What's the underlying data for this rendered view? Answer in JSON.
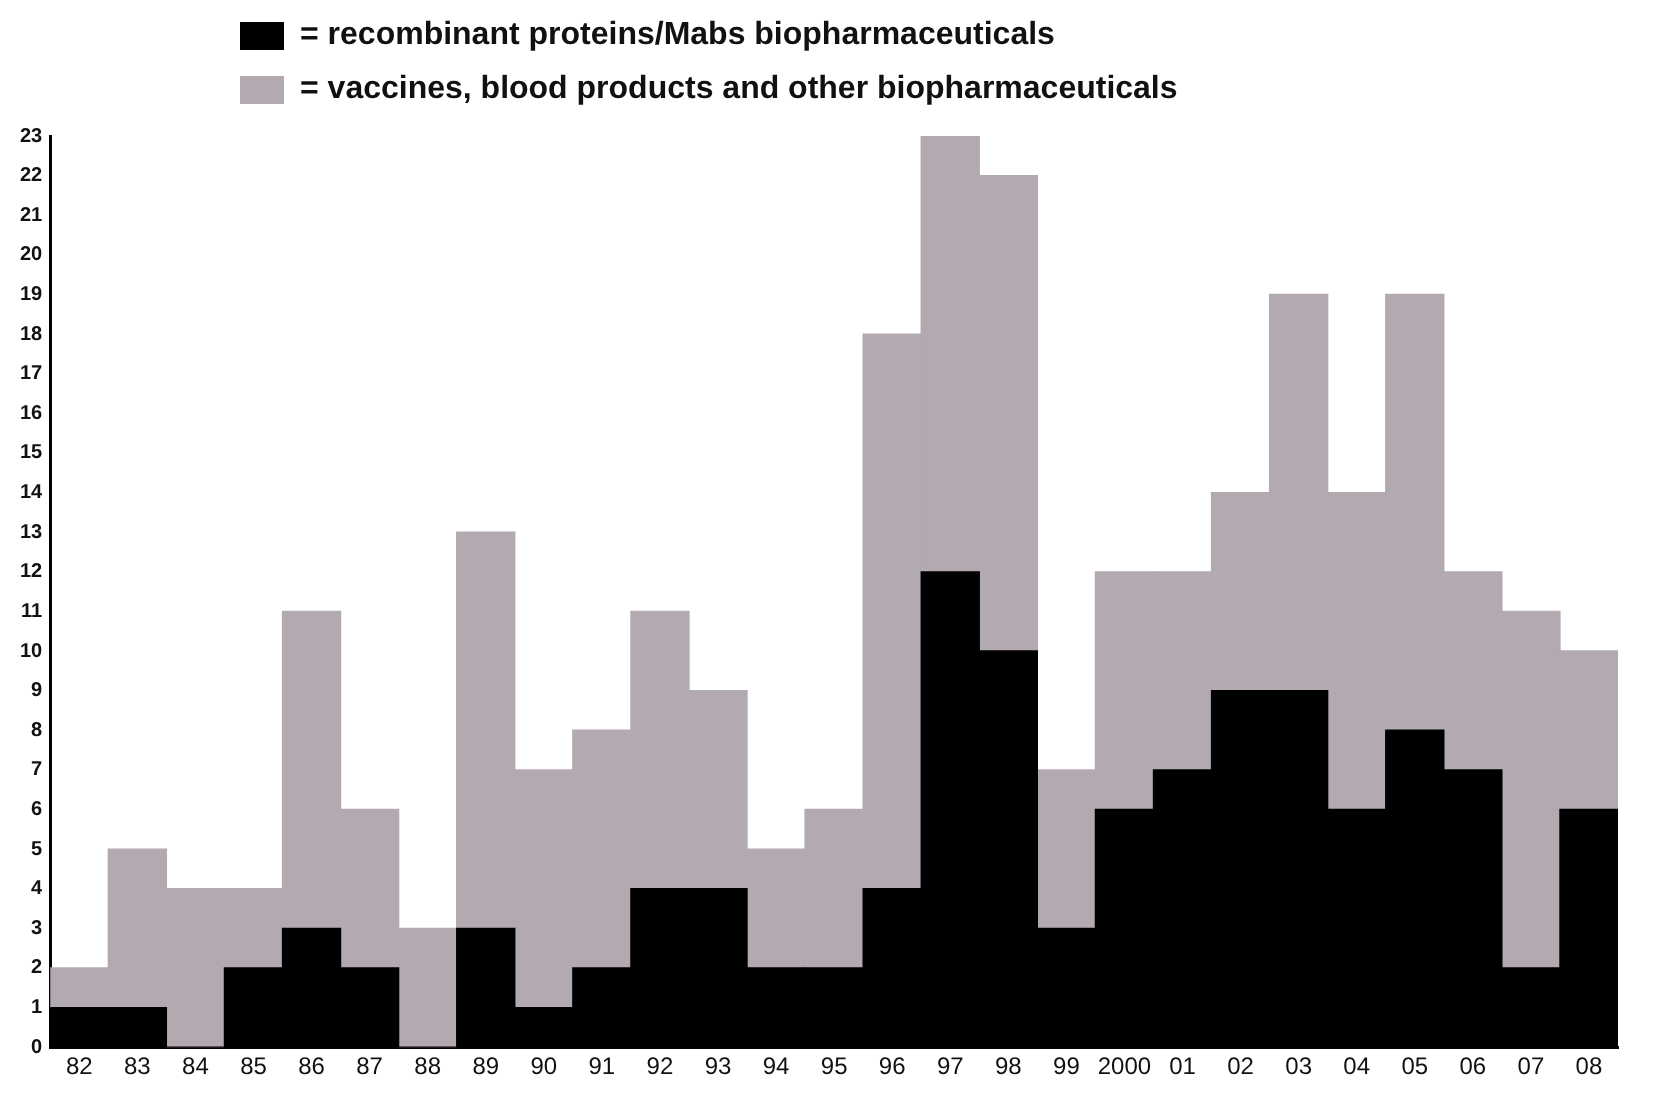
{
  "chart_data": {
    "type": "bar",
    "stacked": true,
    "categories": [
      "82",
      "83",
      "84",
      "85",
      "86",
      "87",
      "88",
      "89",
      "90",
      "91",
      "92",
      "93",
      "94",
      "95",
      "96",
      "97",
      "98",
      "99",
      "2000",
      "01",
      "02",
      "03",
      "04",
      "05",
      "06",
      "07",
      "08"
    ],
    "series": [
      {
        "name": "= recombinant proteins/Mabs biopharmaceuticals",
        "color": "#000000",
        "values": [
          1,
          1,
          0,
          2,
          3,
          2,
          0,
          3,
          1,
          2,
          4,
          4,
          2,
          2,
          4,
          12,
          10,
          3,
          6,
          7,
          9,
          9,
          6,
          8,
          7,
          2,
          6
        ]
      },
      {
        "name": "= vaccines, blood products and other biopharmaceuticals",
        "color": "#b3aab1",
        "values": [
          1,
          4,
          4,
          2,
          8,
          4,
          3,
          10,
          6,
          6,
          7,
          5,
          3,
          4,
          14,
          11,
          12,
          4,
          6,
          5,
          5,
          10,
          8,
          11,
          5,
          9,
          4
        ]
      }
    ],
    "ylim": [
      0,
      23
    ],
    "yticks": [
      0,
      1,
      2,
      3,
      4,
      5,
      6,
      7,
      8,
      9,
      10,
      11,
      12,
      13,
      14,
      15,
      16,
      17,
      18,
      19,
      20,
      21,
      22,
      23
    ],
    "grid": false,
    "legend": "top left"
  }
}
